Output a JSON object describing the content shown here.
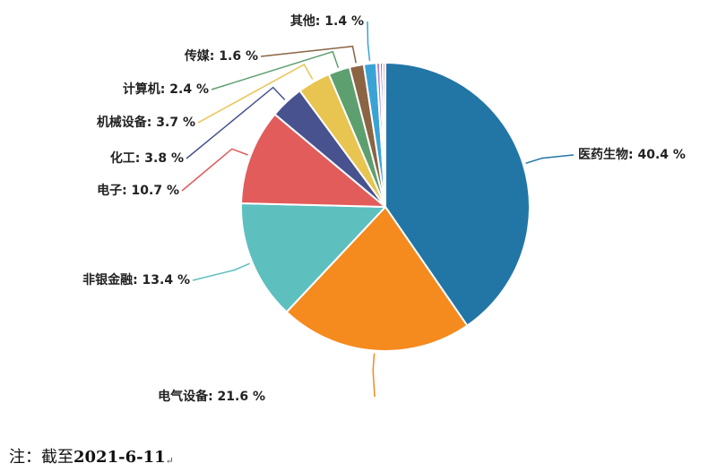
{
  "chart_data": {
    "type": "pie",
    "slices": [
      {
        "label": "医药生物",
        "value": 40.4,
        "color": "#2276a6"
      },
      {
        "label": "电气设备",
        "value": 21.6,
        "color": "#f58a1f"
      },
      {
        "label": "非银金融",
        "value": 13.4,
        "color": "#5ebfbf"
      },
      {
        "label": "电子",
        "value": 10.7,
        "color": "#e25c5c"
      },
      {
        "label": "化工",
        "value": 3.8,
        "color": "#47528f"
      },
      {
        "label": "机械设备",
        "value": 3.7,
        "color": "#e8c450"
      },
      {
        "label": "计算机",
        "value": 2.4,
        "color": "#5e9f6f"
      },
      {
        "label": "传媒",
        "value": 1.6,
        "color": "#8b6443"
      },
      {
        "label": "其他",
        "value": 1.4,
        "color": "#3aa3d6"
      }
    ],
    "small_slices": [
      {
        "value": 0.4,
        "color": "#b17ed0"
      },
      {
        "value": 0.3,
        "color": "#6b7dc1"
      },
      {
        "value": 0.3,
        "color": "#f1a3b9"
      }
    ],
    "label_format": "{label}: {value} %"
  },
  "note": {
    "prefix": "注：截至",
    "date": "2021-6-11",
    "return_mark": "↵"
  }
}
